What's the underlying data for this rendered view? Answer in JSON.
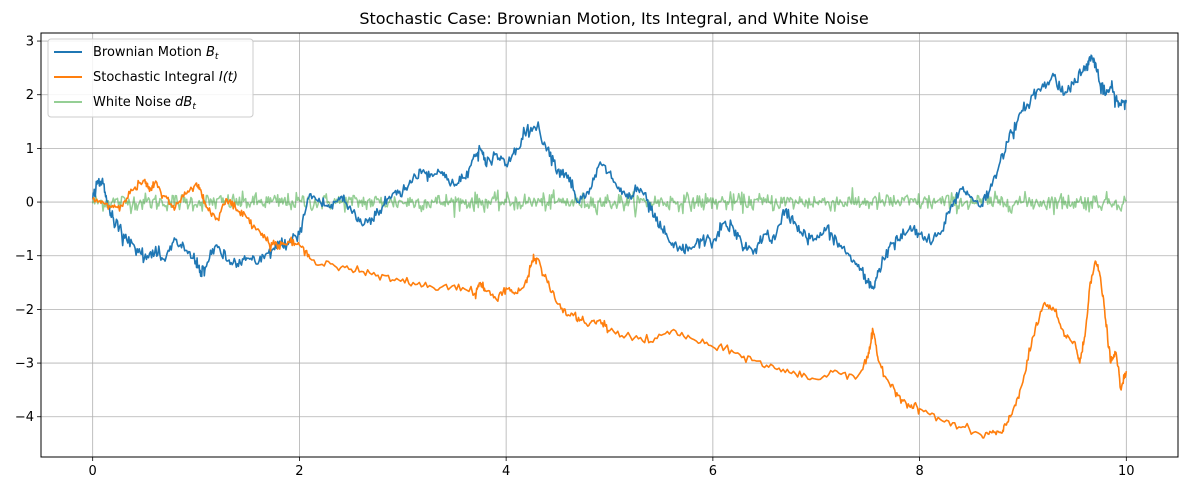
{
  "chart_data": {
    "type": "line",
    "title": "Stochastic Case: Brownian Motion, Its Integral, and White Noise",
    "xlabel": "",
    "ylabel": "",
    "xlim": [
      -0.5,
      10.5
    ],
    "ylim": [
      -4.75,
      3.15
    ],
    "xticks": [
      0,
      2,
      4,
      6,
      8,
      10
    ],
    "yticks": [
      -4,
      -3,
      -2,
      -1,
      0,
      1,
      2,
      3
    ],
    "grid": true,
    "legend_position": "top-left",
    "series": [
      {
        "name": "Brownian Motion",
        "math_symbol": "B",
        "math_subscript": "t",
        "color": "#1f77b4",
        "opacity": 1.0,
        "x": [
          0,
          0.05,
          0.1,
          0.15,
          0.2,
          0.3,
          0.4,
          0.5,
          0.6,
          0.7,
          0.8,
          0.9,
          1.0,
          1.05,
          1.1,
          1.2,
          1.3,
          1.4,
          1.5,
          1.6,
          1.7,
          1.8,
          1.9,
          2.0,
          2.1,
          2.2,
          2.3,
          2.4,
          2.5,
          2.6,
          2.7,
          2.8,
          2.9,
          3.0,
          3.1,
          3.2,
          3.3,
          3.4,
          3.5,
          3.6,
          3.7,
          3.75,
          3.8,
          3.9,
          4.0,
          4.1,
          4.2,
          4.3,
          4.4,
          4.5,
          4.6,
          4.7,
          4.8,
          4.9,
          5.0,
          5.1,
          5.2,
          5.3,
          5.4,
          5.5,
          5.6,
          5.7,
          5.8,
          5.9,
          6.0,
          6.1,
          6.2,
          6.3,
          6.4,
          6.5,
          6.6,
          6.7,
          6.8,
          6.9,
          7.0,
          7.1,
          7.2,
          7.3,
          7.4,
          7.5,
          7.55,
          7.6,
          7.7,
          7.8,
          7.9,
          8.0,
          8.1,
          8.2,
          8.3,
          8.4,
          8.5,
          8.6,
          8.7,
          8.8,
          8.9,
          9.0,
          9.1,
          9.2,
          9.3,
          9.4,
          9.5,
          9.6,
          9.65,
          9.7,
          9.75,
          9.8,
          9.85,
          9.9,
          9.95,
          10.0
        ],
        "values": [
          0.05,
          0.4,
          0.35,
          -0.1,
          -0.3,
          -0.6,
          -0.8,
          -1.05,
          -0.95,
          -1.1,
          -0.7,
          -0.9,
          -1.1,
          -1.3,
          -1.2,
          -0.8,
          -1.1,
          -1.15,
          -1.05,
          -1.15,
          -0.95,
          -0.8,
          -0.75,
          -0.6,
          0.15,
          0.0,
          -0.1,
          0.1,
          -0.15,
          -0.4,
          -0.3,
          -0.1,
          0.15,
          0.2,
          0.45,
          0.6,
          0.5,
          0.55,
          0.3,
          0.45,
          0.85,
          1.0,
          0.7,
          0.9,
          0.7,
          1.0,
          1.35,
          1.4,
          1.0,
          0.6,
          0.5,
          0.0,
          0.15,
          0.7,
          0.55,
          0.2,
          0.1,
          0.25,
          -0.15,
          -0.5,
          -0.8,
          -0.9,
          -0.85,
          -0.7,
          -0.75,
          -0.4,
          -0.5,
          -0.85,
          -0.9,
          -0.6,
          -0.7,
          -0.15,
          -0.4,
          -0.65,
          -0.7,
          -0.5,
          -0.75,
          -0.95,
          -1.2,
          -1.5,
          -1.6,
          -1.3,
          -0.85,
          -0.7,
          -0.5,
          -0.6,
          -0.75,
          -0.6,
          -0.1,
          0.25,
          0.1,
          -0.05,
          0.3,
          0.9,
          1.3,
          1.7,
          2.0,
          2.15,
          2.35,
          2.0,
          2.3,
          2.45,
          2.7,
          2.6,
          2.15,
          2.0,
          2.15,
          1.9,
          1.8,
          1.9
        ]
      },
      {
        "name": "Stochastic Integral",
        "math_symbol": "I(t)",
        "math_subscript": "",
        "color": "#ff7f0e",
        "opacity": 1.0,
        "x": [
          0,
          0.1,
          0.2,
          0.3,
          0.4,
          0.5,
          0.55,
          0.6,
          0.7,
          0.8,
          0.9,
          1.0,
          1.05,
          1.1,
          1.2,
          1.3,
          1.4,
          1.5,
          1.6,
          1.7,
          1.8,
          1.9,
          2.0,
          2.1,
          2.3,
          2.5,
          2.7,
          2.9,
          3.1,
          3.3,
          3.5,
          3.7,
          3.75,
          3.8,
          3.9,
          4.0,
          4.1,
          4.2,
          4.25,
          4.3,
          4.4,
          4.5,
          4.6,
          4.7,
          4.8,
          4.9,
          5.0,
          5.2,
          5.4,
          5.6,
          5.8,
          6.0,
          6.2,
          6.4,
          6.6,
          6.8,
          7.0,
          7.2,
          7.4,
          7.5,
          7.55,
          7.6,
          7.7,
          7.8,
          7.9,
          8.0,
          8.2,
          8.4,
          8.6,
          8.7,
          8.8,
          8.85,
          8.9,
          9.0,
          9.1,
          9.2,
          9.3,
          9.4,
          9.5,
          9.55,
          9.6,
          9.65,
          9.7,
          9.75,
          9.8,
          9.85,
          9.9,
          9.95,
          10.0
        ],
        "values": [
          0.05,
          0.0,
          -0.1,
          0.0,
          0.25,
          0.4,
          0.2,
          0.35,
          0.1,
          -0.1,
          0.15,
          0.35,
          0.2,
          -0.1,
          -0.3,
          0.05,
          -0.15,
          -0.3,
          -0.5,
          -0.75,
          -0.8,
          -0.75,
          -0.8,
          -1.05,
          -1.15,
          -1.25,
          -1.35,
          -1.45,
          -1.5,
          -1.6,
          -1.55,
          -1.7,
          -1.5,
          -1.65,
          -1.8,
          -1.6,
          -1.7,
          -1.5,
          -1.1,
          -1.05,
          -1.5,
          -1.9,
          -2.1,
          -2.15,
          -2.3,
          -2.2,
          -2.4,
          -2.5,
          -2.6,
          -2.4,
          -2.55,
          -2.7,
          -2.8,
          -2.95,
          -3.1,
          -3.2,
          -3.3,
          -3.15,
          -3.25,
          -2.9,
          -2.4,
          -2.95,
          -3.35,
          -3.6,
          -3.8,
          -3.85,
          -4.05,
          -4.2,
          -4.35,
          -4.3,
          -4.3,
          -4.1,
          -3.9,
          -3.35,
          -2.5,
          -1.9,
          -2.0,
          -2.5,
          -2.6,
          -3.0,
          -2.5,
          -1.5,
          -1.1,
          -1.4,
          -2.2,
          -3.0,
          -2.8,
          -3.5,
          -3.15
        ]
      },
      {
        "name": "White Noise",
        "math_symbol": "dB",
        "math_subscript": "t",
        "color": "#2ca02c",
        "opacity": 0.5,
        "noise_amplitude": 0.18,
        "x_range": [
          0,
          10
        ],
        "mean": 0
      }
    ]
  }
}
